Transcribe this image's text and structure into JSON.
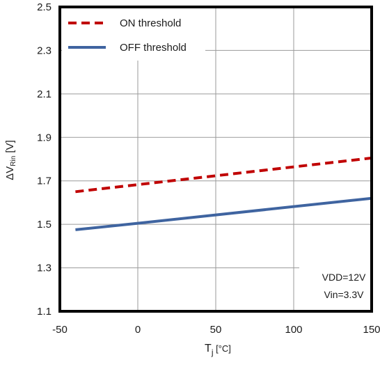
{
  "chart_data": {
    "type": "line",
    "x_range": [
      -50,
      150
    ],
    "y_range": [
      1.1,
      2.5
    ],
    "x_ticks": [
      -50,
      0,
      50,
      100,
      150
    ],
    "y_ticks": [
      1.1,
      1.3,
      1.5,
      1.7,
      1.9,
      2.1,
      2.3,
      2.5
    ],
    "x_tick_labels": [
      "-50",
      "0",
      "50",
      "100",
      "150"
    ],
    "y_tick_labels": [
      "1.1",
      "1.3",
      "1.5",
      "1.7",
      "1.9",
      "2.1",
      "2.3",
      "2.5"
    ],
    "xlabel": {
      "main": "T",
      "sub": "j",
      "unit": " [°C]"
    },
    "ylabel": {
      "main": "ΔV",
      "sub": "Rin",
      "unit": " [V]"
    },
    "grid": true,
    "legend_position": "top-left",
    "series": [
      {
        "name": "ON threshold",
        "color": "#c00000",
        "dash": "dashed",
        "x": [
          -40,
          150
        ],
        "y": [
          1.65,
          1.805
        ]
      },
      {
        "name": "OFF threshold",
        "color": "#3f64a0",
        "dash": "solid",
        "x": [
          -40,
          0,
          150
        ],
        "y": [
          1.475,
          1.505,
          1.62
        ]
      }
    ],
    "annotation": [
      "VDD=12V",
      "Vin=3.3V"
    ]
  }
}
